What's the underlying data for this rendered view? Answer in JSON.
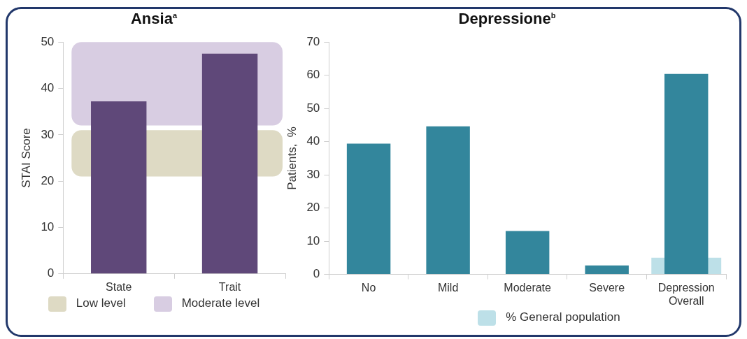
{
  "chart_data": [
    {
      "type": "bar",
      "title": "Ansia$^{a}$",
      "ylabel": "STAI Score",
      "categories": [
        "State",
        "Trait"
      ],
      "values": [
        37.2,
        47.5
      ],
      "color": "#5f4879",
      "ylim": [
        0,
        50
      ],
      "yticks": [
        0,
        10,
        20,
        30,
        40,
        50
      ],
      "grid": false,
      "legend": "bottom",
      "bands": [
        {
          "axis": "y",
          "from": 21,
          "to": 31,
          "label": "Low level",
          "color": "#dedac4"
        },
        {
          "axis": "y",
          "from": 32,
          "to": 50,
          "label": "Moderate level",
          "color": "#d8cde2"
        }
      ]
    },
    {
      "type": "bar",
      "title": "Depressione$^{b}$",
      "ylabel": "Patients,  %",
      "categories": [
        "No",
        "Mild",
        "Moderate",
        "Severe",
        "Depression Overall"
      ],
      "ylim": [
        0,
        70
      ],
      "yticks": [
        0,
        10,
        20,
        30,
        40,
        50,
        60,
        70
      ],
      "grid": false,
      "legend": "bottom",
      "series": [
        {
          "color": "#33869c",
          "values": [
            39.4,
            44.6,
            13.1,
            2.7,
            60.4
          ]
        },
        {
          "name": "% General population",
          "color": "#bde0e8",
          "values": [
            null,
            null,
            null,
            null,
            5
          ]
        }
      ]
    }
  ]
}
